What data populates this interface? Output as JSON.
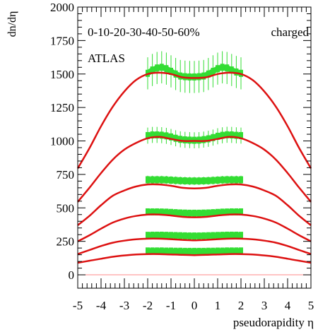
{
  "chart_data": {
    "type": "line",
    "ylabel": "dn/dη",
    "xlabel": "pseudorapidity η",
    "annotations": {
      "centrality": "0-10-20-30-40-50-60%",
      "particles": "charged",
      "experiment": "ATLAS"
    },
    "xlim": [
      -5,
      5
    ],
    "ylim": [
      -100,
      2000
    ],
    "x_ticks": [
      "-5",
      "-4",
      "-3",
      "-2",
      "-1",
      "0",
      "1",
      "2",
      "3",
      "4",
      "5"
    ],
    "y_ticks": [
      "0",
      "250",
      "500",
      "750",
      "1000",
      "1250",
      "1500",
      "1750",
      "2000"
    ],
    "x_tick_values": [
      -5,
      -4,
      -3,
      -2,
      -1,
      0,
      1,
      2,
      3,
      4,
      5
    ],
    "y_tick_values": [
      0,
      250,
      500,
      750,
      1000,
      1250,
      1500,
      1750,
      2000
    ],
    "colors": {
      "theory": "#dd1111",
      "data": "#33dd33",
      "baseline": "#ff8888",
      "frame": "#000000"
    },
    "grid": false,
    "theory_x": [
      -5,
      -4.5,
      -4,
      -3.5,
      -3,
      -2.5,
      -2,
      -1.5,
      -1,
      -0.5,
      0,
      0.5,
      1,
      1.5,
      2,
      2.5,
      3,
      3.5,
      4,
      4.5,
      5
    ],
    "series": [
      {
        "values": [
          795,
          945,
          1110,
          1255,
          1370,
          1455,
          1500,
          1510,
          1500,
          1475,
          1470,
          1475,
          1500,
          1510,
          1500,
          1455,
          1370,
          1255,
          1110,
          945,
          795
        ]
      },
      {
        "values": [
          545,
          650,
          760,
          860,
          935,
          985,
          1020,
          1030,
          1015,
          1000,
          1000,
          1000,
          1015,
          1030,
          1020,
          985,
          935,
          860,
          760,
          650,
          545
        ]
      },
      {
        "values": [
          370,
          440,
          520,
          590,
          630,
          660,
          675,
          675,
          665,
          650,
          645,
          650,
          665,
          675,
          675,
          660,
          630,
          590,
          520,
          440,
          370
        ]
      },
      {
        "values": [
          250,
          295,
          345,
          390,
          420,
          440,
          450,
          450,
          443,
          433,
          430,
          433,
          443,
          450,
          450,
          440,
          420,
          390,
          345,
          295,
          250
        ]
      },
      {
        "values": [
          155,
          185,
          215,
          240,
          255,
          265,
          270,
          270,
          266,
          261,
          258,
          261,
          266,
          270,
          270,
          265,
          255,
          240,
          215,
          185,
          155
        ]
      },
      {
        "values": [
          90,
          105,
          120,
          135,
          145,
          152,
          155,
          155,
          152,
          149,
          147,
          149,
          152,
          155,
          155,
          152,
          145,
          135,
          120,
          105,
          90
        ]
      }
    ],
    "data_x": [
      -2.0,
      -1.8,
      -1.6,
      -1.4,
      -1.2,
      -1.0,
      -0.8,
      -0.6,
      -0.4,
      -0.2,
      0.0,
      0.2,
      0.4,
      0.6,
      0.8,
      1.0,
      1.2,
      1.4,
      1.6,
      1.8,
      2.0
    ],
    "data_series": [
      {
        "values": [
          1505,
          1530,
          1545,
          1550,
          1540,
          1520,
          1500,
          1485,
          1480,
          1478,
          1478,
          1480,
          1485,
          1500,
          1520,
          1540,
          1550,
          1545,
          1530,
          1515,
          1505
        ],
        "err": 120
      },
      {
        "values": [
          1040,
          1045,
          1045,
          1043,
          1038,
          1030,
          1020,
          1012,
          1008,
          1006,
          1005,
          1006,
          1010,
          1016,
          1025,
          1035,
          1042,
          1046,
          1045,
          1042,
          1040
        ],
        "err": 60
      },
      {
        "values": [
          710,
          710,
          710,
          710,
          709,
          707,
          705,
          703,
          702,
          701,
          701,
          701,
          702,
          703,
          705,
          707,
          709,
          710,
          710,
          710,
          710
        ],
        "err": 30
      },
      {
        "values": [
          470,
          470,
          470,
          469,
          468,
          466,
          464,
          462,
          461,
          460,
          460,
          460,
          461,
          462,
          464,
          466,
          468,
          469,
          470,
          470,
          470
        ],
        "err": 14
      },
      {
        "values": [
          295,
          296,
          296,
          296,
          295,
          294,
          293,
          292,
          291,
          290,
          290,
          290,
          291,
          292,
          293,
          294,
          295,
          296,
          296,
          296,
          295
        ],
        "err": 10
      },
      {
        "values": [
          178,
          178,
          178,
          178,
          177,
          177,
          176,
          176,
          175,
          175,
          175,
          175,
          175,
          176,
          176,
          177,
          177,
          178,
          178,
          178,
          178
        ],
        "err": 8
      }
    ]
  }
}
